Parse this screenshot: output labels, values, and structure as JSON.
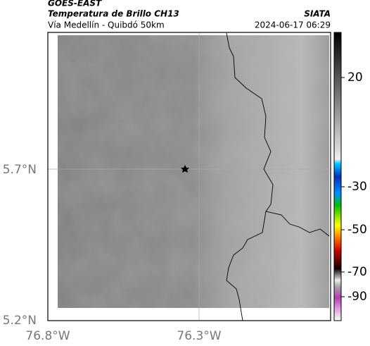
{
  "header": {
    "satellite": "GOES-EAST",
    "product": "Temperatura de Brillo CH13",
    "route": "Vía Medellín - Quibdó 50km",
    "source": "SIATA",
    "timestamp": "2024-06-17 06:29"
  },
  "map": {
    "lat_labels": [
      "5.7°N",
      "5.2°N"
    ],
    "lon_labels": [
      "76.8°W",
      "76.3°W"
    ]
  },
  "colorbar": {
    "ticks": [
      20,
      -30,
      -50,
      -70,
      -90
    ]
  }
}
